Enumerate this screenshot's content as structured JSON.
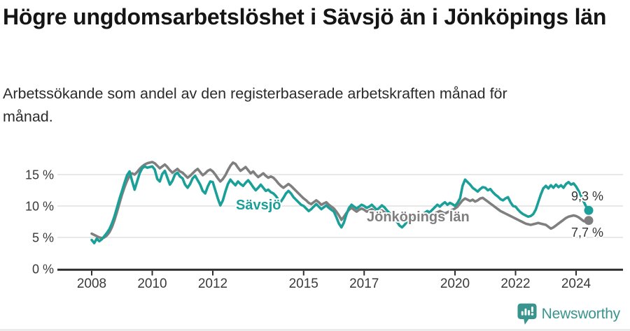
{
  "title": "Högre ungdomsarbetslöshet i Sävsjö än i Jönköpings län",
  "subtitle": "Arbetssökande som andel av den registerbaserade arbetskraften månad för månad.",
  "branding": {
    "name": "Newsworthy",
    "icon": "newsworthy-bars-icon",
    "color": "#3a948e"
  },
  "colors": {
    "savsjo": "#1aa098",
    "jonkopings_lan": "#7f7f7f",
    "gridline": "#d9d9d9",
    "axis": "#2e2e2e",
    "value_label": "#333333",
    "title": "#151515"
  },
  "chart_data": {
    "type": "line",
    "x_unit": "month",
    "x_start": "2008-01",
    "x_end": "2024-06",
    "ylim": [
      0,
      17.5
    ],
    "grid": "horizontal",
    "legend_position": "inline-labels",
    "yticks": [
      {
        "value": 0,
        "label": "0 %"
      },
      {
        "value": 5,
        "label": "5 %"
      },
      {
        "value": 10,
        "label": "10 %"
      },
      {
        "value": 15,
        "label": "15 %"
      }
    ],
    "xticks": [
      {
        "value": 2008,
        "label": "2008"
      },
      {
        "value": 2010,
        "label": "2010"
      },
      {
        "value": 2012,
        "label": "2012"
      },
      {
        "value": 2015,
        "label": "2015"
      },
      {
        "value": 2017,
        "label": "2017"
      },
      {
        "value": 2020,
        "label": "2020"
      },
      {
        "value": 2022,
        "label": "2022"
      },
      {
        "value": 2024,
        "label": "2024"
      }
    ],
    "series": [
      {
        "name": "Sävsjö",
        "color": "#1aa098",
        "end_label": "9,3 %",
        "end_value": 9.3,
        "values": [
          4.6,
          4.1,
          4.8,
          4.4,
          4.7,
          5.2,
          5.7,
          6.3,
          7.2,
          8.3,
          9.7,
          11.1,
          12.4,
          13.7,
          14.9,
          15.5,
          14.0,
          12.6,
          13.9,
          15.2,
          16.0,
          16.3,
          16.1,
          16.2,
          16.3,
          15.8,
          14.3,
          13.9,
          15.1,
          15.6,
          14.5,
          13.4,
          14.0,
          15.0,
          15.3,
          14.7,
          14.4,
          13.4,
          12.9,
          13.5,
          14.4,
          14.8,
          14.1,
          13.4,
          12.4,
          12.0,
          13.1,
          13.9,
          13.8,
          12.5,
          11.2,
          10.1,
          10.9,
          12.3,
          13.5,
          14.2,
          13.7,
          13.3,
          13.9,
          13.5,
          13.2,
          13.7,
          14.1,
          13.6,
          13.0,
          12.5,
          12.9,
          13.4,
          12.9,
          12.4,
          12.6,
          12.2,
          12.0,
          11.6,
          11.0,
          10.7,
          11.3,
          12.0,
          12.4,
          12.0,
          11.4,
          11.0,
          10.6,
          10.2,
          10.0,
          9.6,
          9.2,
          9.5,
          9.9,
          10.3,
          9.9,
          9.5,
          9.8,
          10.1,
          9.7,
          9.4,
          9.1,
          8.2,
          7.2,
          6.6,
          7.4,
          8.7,
          9.7,
          10.2,
          9.9,
          9.6,
          9.9,
          10.2,
          10.0,
          9.7,
          9.9,
          10.2,
          9.8,
          9.4,
          9.7,
          10.1,
          9.8,
          9.3,
          8.9,
          8.5,
          8.1,
          7.5,
          6.9,
          6.6,
          7.0,
          7.5,
          7.9,
          8.2,
          7.9,
          8.1,
          8.4,
          8.7,
          8.9,
          9.2,
          9.0,
          9.4,
          9.8,
          10.2,
          9.9,
          10.3,
          10.6,
          10.2,
          10.5,
          10.3,
          10.0,
          10.5,
          11.2,
          13.2,
          14.2,
          13.8,
          13.4,
          12.9,
          12.6,
          12.3,
          12.7,
          13.0,
          12.9,
          12.5,
          12.7,
          12.2,
          11.8,
          11.5,
          11.1,
          10.9,
          11.2,
          11.4,
          10.6,
          10.0,
          9.9,
          9.4,
          9.0,
          8.7,
          8.5,
          8.3,
          8.4,
          8.7,
          9.4,
          10.6,
          11.8,
          12.8,
          13.2,
          12.8,
          13.3,
          12.9,
          13.4,
          13.0,
          13.3,
          12.9,
          13.5,
          13.8,
          13.4,
          13.6,
          13.1,
          12.4,
          11.6,
          10.7,
          9.9,
          9.3
        ]
      },
      {
        "name": "Jönköpings län",
        "color": "#7f7f7f",
        "end_label": "7,7 %",
        "end_value": 7.7,
        "values": [
          5.6,
          5.4,
          5.2,
          5.0,
          4.9,
          5.0,
          5.3,
          5.8,
          6.6,
          7.7,
          9.0,
          10.4,
          11.8,
          13.0,
          14.0,
          14.8,
          15.2,
          15.0,
          15.4,
          15.9,
          16.3,
          16.6,
          16.8,
          16.9,
          17.0,
          16.8,
          16.4,
          16.0,
          16.3,
          16.6,
          16.2,
          15.7,
          15.3,
          15.6,
          15.9,
          15.5,
          15.3,
          14.9,
          14.5,
          14.8,
          15.2,
          15.6,
          15.9,
          15.4,
          14.9,
          15.2,
          15.6,
          15.8,
          15.5,
          15.0,
          14.4,
          13.9,
          14.3,
          14.9,
          15.7,
          16.4,
          16.9,
          16.7,
          16.1,
          15.6,
          15.9,
          16.2,
          15.7,
          15.2,
          15.5,
          15.0,
          14.6,
          14.9,
          15.2,
          14.8,
          14.5,
          14.7,
          14.5,
          14.1,
          13.6,
          13.2,
          12.9,
          13.2,
          13.5,
          13.2,
          12.8,
          12.4,
          12.0,
          11.6,
          11.2,
          10.9,
          10.5,
          10.3,
          10.6,
          10.9,
          10.6,
          10.2,
          10.4,
          10.6,
          10.2,
          9.9,
          9.6,
          9.1,
          8.5,
          7.8,
          8.3,
          8.9,
          9.4,
          9.7,
          9.4,
          9.1,
          9.4,
          9.6,
          9.4,
          9.1,
          9.3,
          9.5,
          9.2,
          8.9,
          9.1,
          9.3,
          9.0,
          8.7,
          8.5,
          8.3,
          8.1,
          7.9,
          7.7,
          7.8,
          8.0,
          8.2,
          8.0,
          7.8,
          8.0,
          8.2,
          8.4,
          8.6,
          8.8,
          9.0,
          8.8,
          8.6,
          8.8,
          9.0,
          9.2,
          9.0,
          8.8,
          9.0,
          9.2,
          9.4,
          9.6,
          9.9,
          10.4,
          10.9,
          11.2,
          11.0,
          10.8,
          11.0,
          10.7,
          10.9,
          11.2,
          11.3,
          11.0,
          10.7,
          10.4,
          10.1,
          9.8,
          9.5,
          9.2,
          9.0,
          8.8,
          8.6,
          8.4,
          8.2,
          8.0,
          7.8,
          7.6,
          7.4,
          7.2,
          7.1,
          7.0,
          7.1,
          7.2,
          7.3,
          7.2,
          7.1,
          7.0,
          6.7,
          6.4,
          6.6,
          6.9,
          7.2,
          7.5,
          7.8,
          8.1,
          8.3,
          8.4,
          8.5,
          8.4,
          8.2,
          7.9,
          7.6,
          7.5,
          7.7
        ]
      }
    ]
  }
}
